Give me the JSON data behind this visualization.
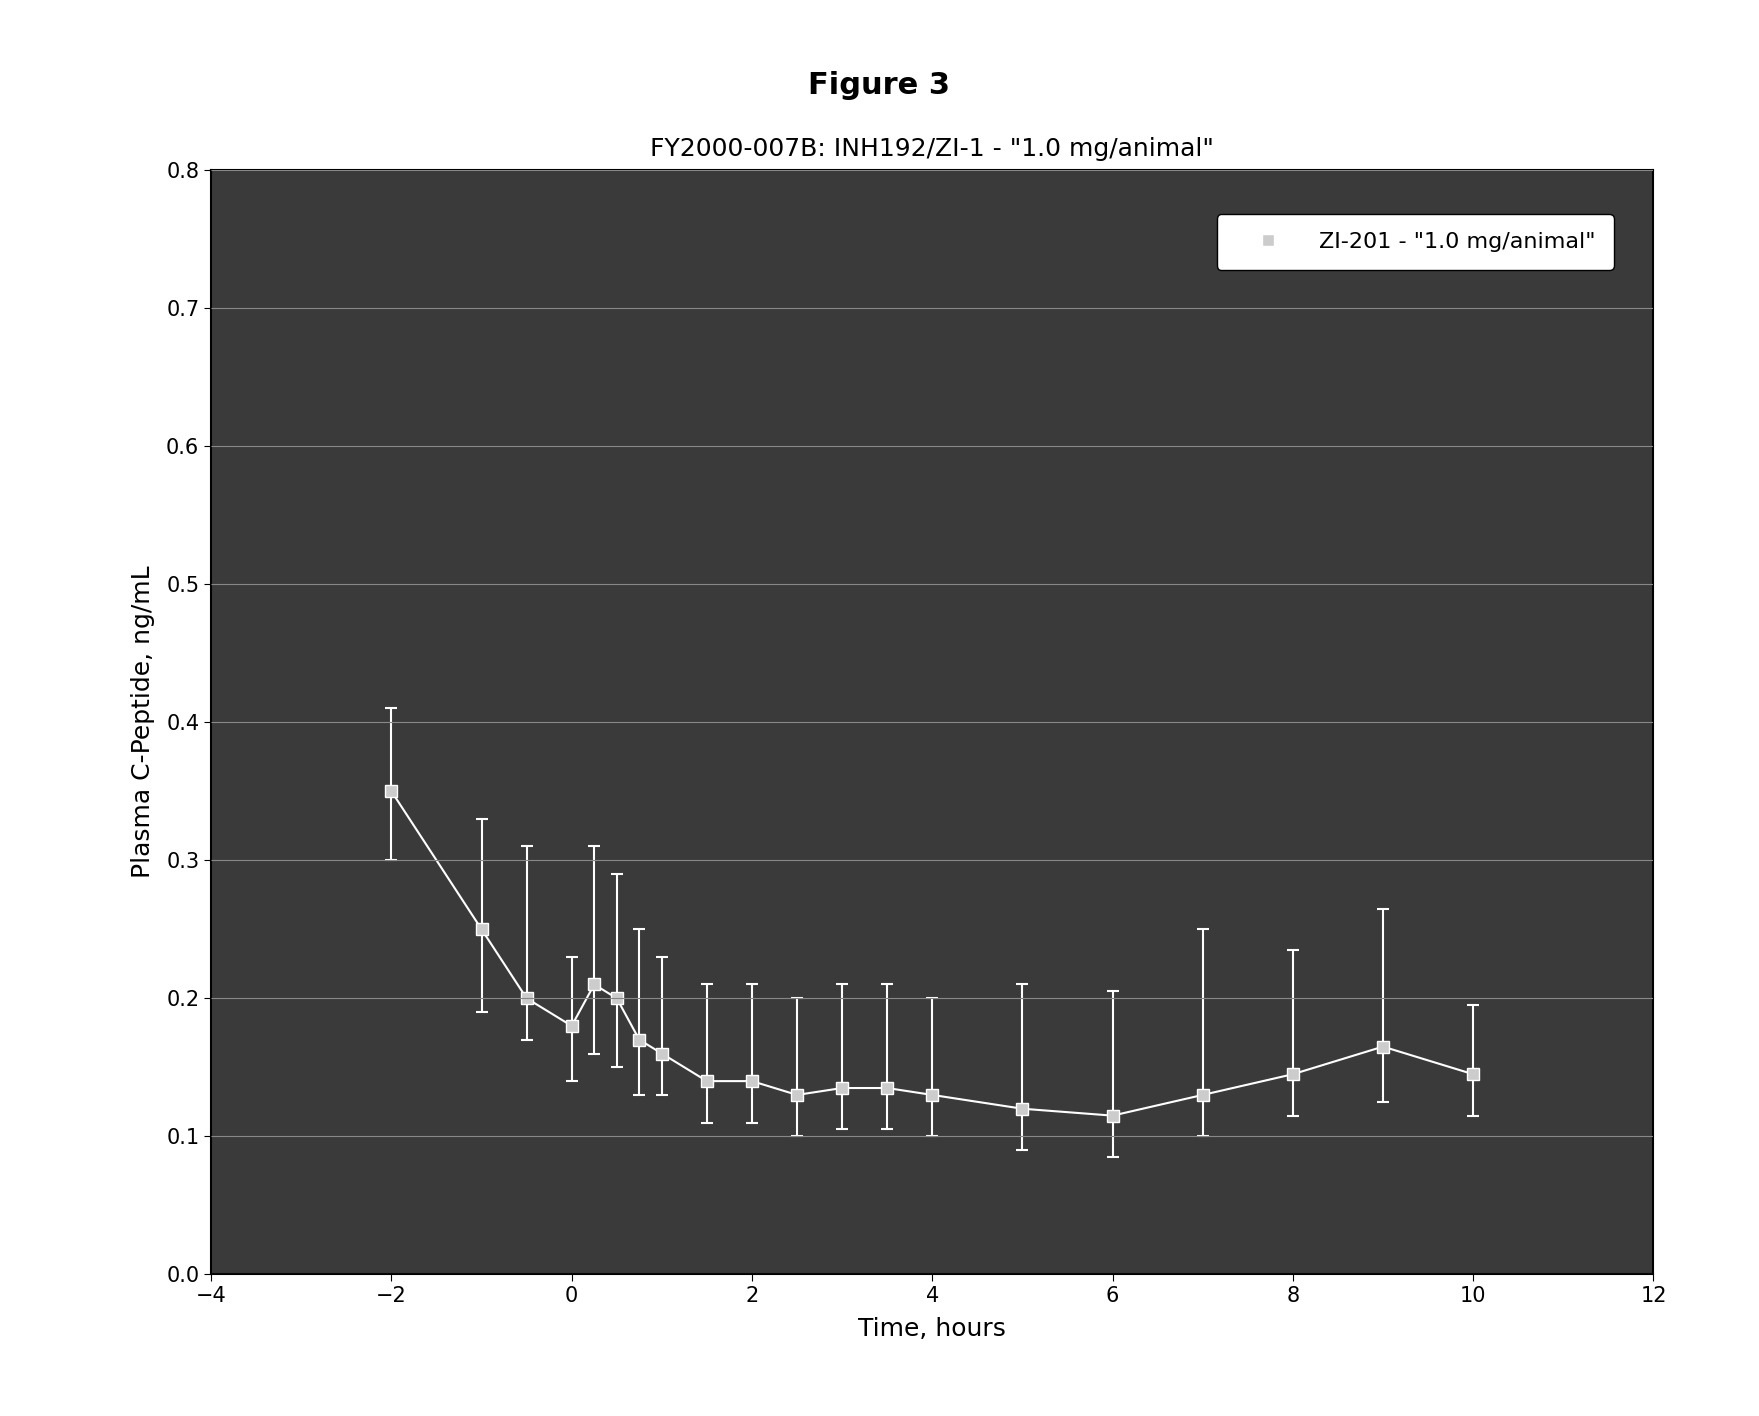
{
  "title_figure": "Figure 3",
  "chart_title": "FY2000-007B: INH192/ZI-1 - \"1.0 mg/animal\"",
  "xlabel": "Time, hours",
  "ylabel": "Plasma C-Peptide, ng/mL",
  "legend_label": "ZI-201 - \"1.0 mg/animal\"",
  "xlim": [
    -4,
    12
  ],
  "ylim": [
    0.0,
    0.8
  ],
  "xticks": [
    -4,
    -2,
    0,
    2,
    4,
    6,
    8,
    10,
    12
  ],
  "yticks": [
    0.0,
    0.1,
    0.2,
    0.3,
    0.4,
    0.5,
    0.6,
    0.7,
    0.8
  ],
  "x": [
    -2,
    -1,
    -0.5,
    0,
    0.25,
    0.5,
    0.75,
    1.0,
    1.5,
    2.0,
    2.5,
    3.0,
    3.5,
    4.0,
    5.0,
    6.0,
    7.0,
    8.0,
    9.0,
    10.0
  ],
  "y": [
    0.35,
    0.25,
    0.2,
    0.18,
    0.21,
    0.2,
    0.17,
    0.16,
    0.14,
    0.14,
    0.13,
    0.135,
    0.135,
    0.13,
    0.12,
    0.115,
    0.13,
    0.145,
    0.165,
    0.145
  ],
  "yerr_upper": [
    0.06,
    0.08,
    0.11,
    0.05,
    0.1,
    0.09,
    0.08,
    0.07,
    0.07,
    0.07,
    0.07,
    0.075,
    0.075,
    0.07,
    0.09,
    0.09,
    0.12,
    0.09,
    0.1,
    0.05
  ],
  "yerr_lower": [
    0.05,
    0.06,
    0.03,
    0.04,
    0.05,
    0.05,
    0.04,
    0.03,
    0.03,
    0.03,
    0.03,
    0.03,
    0.03,
    0.03,
    0.03,
    0.03,
    0.03,
    0.03,
    0.04,
    0.03
  ],
  "line_color": "#ffffff",
  "marker_color": "#cccccc",
  "background_plot": "#3a3a3a",
  "background_fig": "#ffffff",
  "grid_color": "#888888"
}
